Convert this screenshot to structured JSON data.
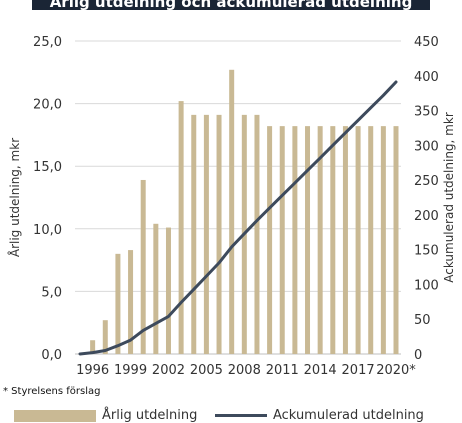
{
  "title": "Årlig utdelning och ackumulerad utdelning",
  "footnote": "* Styrelsens förslag",
  "colors": {
    "bar": "#c9b994",
    "line": "#3d4a5c",
    "title_bg": "#1a2535",
    "axis": "#bfbfbf"
  },
  "chart_data": {
    "type": "bar",
    "title": "Årlig utdelning och ackumulerad utdelning",
    "x": [
      1995,
      1996,
      1997,
      1998,
      1999,
      2000,
      2001,
      2002,
      2003,
      2004,
      2005,
      2006,
      2007,
      2008,
      2009,
      2010,
      2011,
      2012,
      2013,
      2014,
      2015,
      2016,
      2017,
      2018,
      2019,
      2020
    ],
    "x_tick_labels": [
      "1996",
      "1999",
      "2002",
      "2005",
      "2008",
      "2011",
      "2014",
      "2017",
      "2020*"
    ],
    "x_tick_years": [
      1996,
      1999,
      2002,
      2005,
      2008,
      2011,
      2014,
      2017,
      2020
    ],
    "ylabel": "Årlig utdelning, mkr",
    "ylabel_right": "Ackumulerad utdelning, mkr",
    "ylim": [
      0,
      25
    ],
    "ylim_right": [
      0,
      450
    ],
    "y_tick_labels": [
      "0,0",
      "5,0",
      "10,0",
      "15,0",
      "20,0",
      "25,0"
    ],
    "y_ticks": [
      0,
      5,
      10,
      15,
      20,
      25
    ],
    "y_right_ticks": [
      0,
      50,
      100,
      150,
      200,
      250,
      300,
      350,
      400,
      450
    ],
    "series": [
      {
        "name": "Årlig utdelning",
        "type": "bar",
        "axis": "left",
        "values": [
          0,
          1.1,
          2.7,
          8.0,
          8.3,
          13.9,
          10.4,
          10.1,
          20.2,
          19.1,
          19.1,
          19.1,
          22.7,
          19.1,
          19.1,
          18.2,
          18.2,
          18.2,
          18.2,
          18.2,
          18.2,
          18.2,
          18.2,
          18.2,
          18.2,
          18.2
        ]
      },
      {
        "name": "Ackumulerad utdelning",
        "type": "line",
        "axis": "right",
        "values": [
          0,
          2,
          5,
          12,
          20,
          34,
          44,
          54,
          74,
          93,
          112,
          131,
          154,
          173,
          192,
          210,
          228,
          246,
          264,
          282,
          300,
          318,
          336,
          354,
          372,
          391
        ]
      }
    ],
    "legend_position": "bottom",
    "grid": "horizontal"
  }
}
